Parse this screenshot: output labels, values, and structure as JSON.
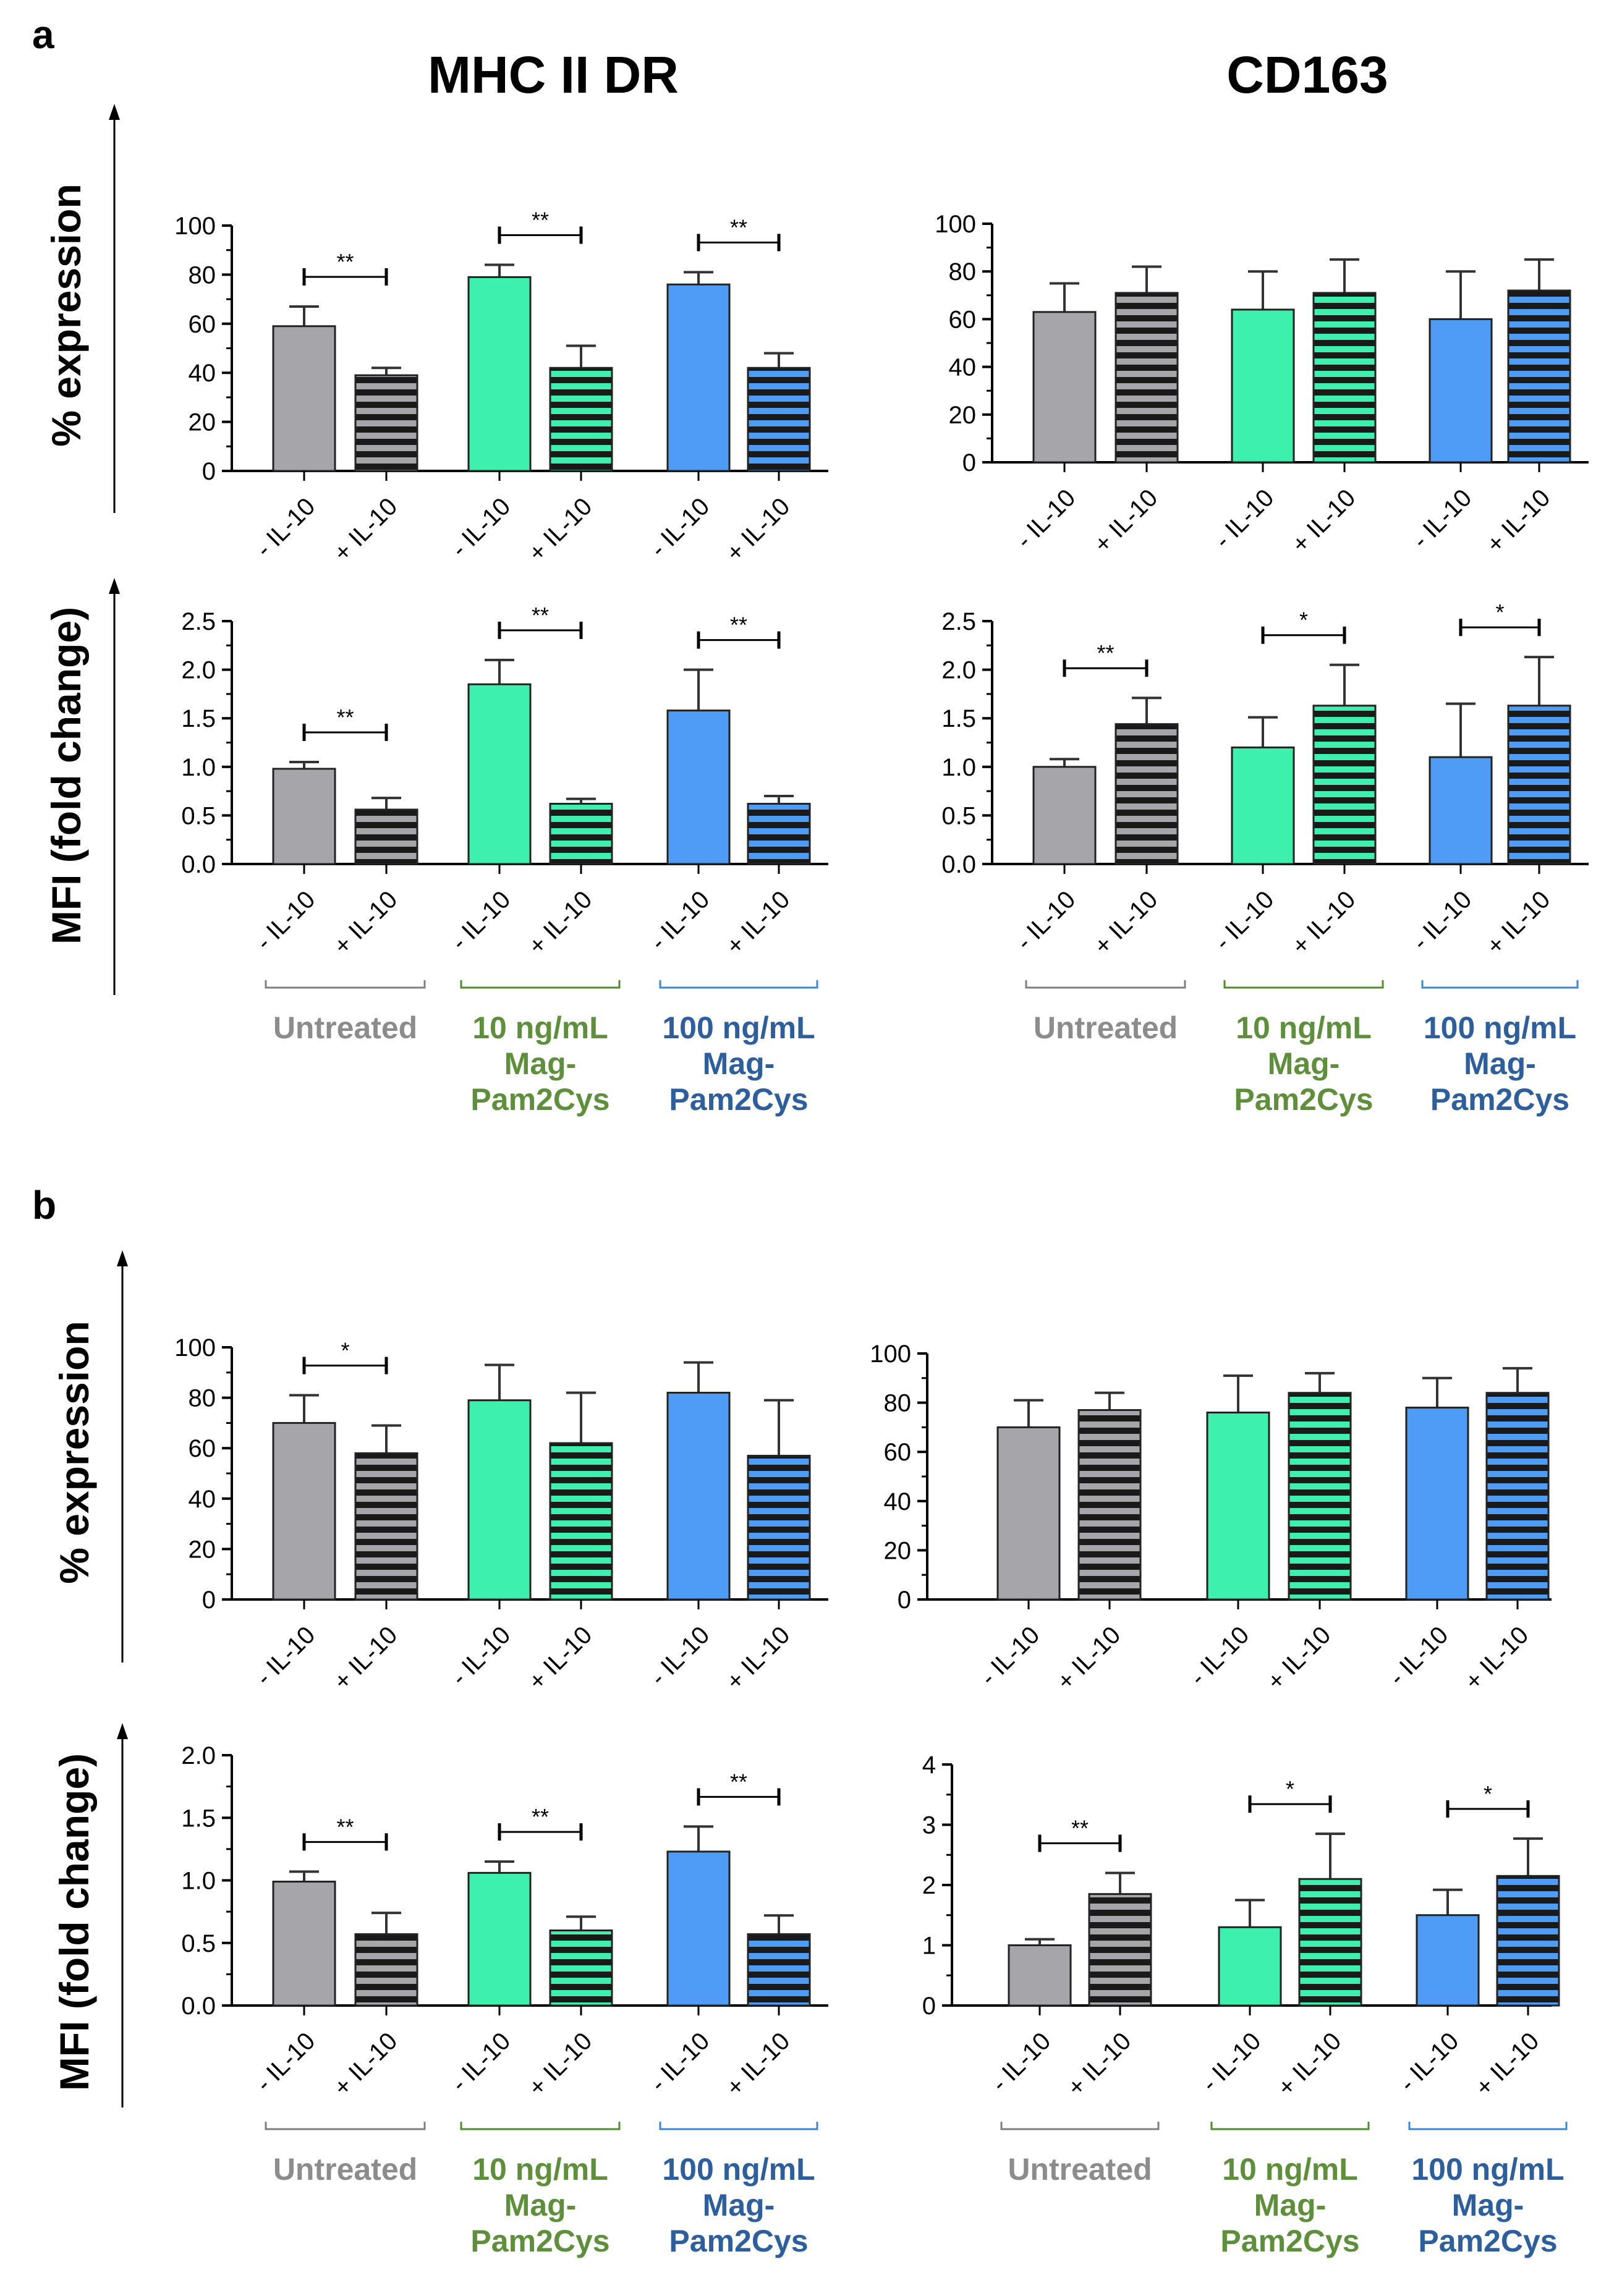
{
  "colors": {
    "untreated": "#a6a6aa",
    "mag10": "#3ef0ae",
    "mag100": "#4f9cf7",
    "label_untreated": "#8c8c8c",
    "label_mag10": "#5e8f3a",
    "label_mag100": "#2d5f9e",
    "bracket_untreated": "#7f7f7f",
    "bracket_mag10": "#4e8d2e",
    "bracket_mag100": "#3b86d6"
  },
  "figure": {
    "panel_labels": [
      "a",
      "b"
    ],
    "column_titles": [
      "MHC II DR",
      "CD163"
    ],
    "row_ylabels": [
      "% expression",
      "MFI (fold change)"
    ],
    "condition_labels": [
      "- IL-10",
      "+ IL-10"
    ],
    "group_labels": [
      [
        "Untreated"
      ],
      [
        "10 ng/mL",
        "Mag-",
        "Pam2Cys"
      ],
      [
        "100 ng/mL",
        "Mag-",
        "Pam2Cys"
      ]
    ]
  },
  "chart_data": [
    {
      "type": "bar",
      "panel": "a",
      "marker": "MHC II DR",
      "measure": "% expression",
      "ylim": [
        0,
        100
      ],
      "yticks": [
        0,
        20,
        40,
        60,
        80,
        100
      ],
      "ytick_labels": [
        "0",
        "20",
        "40",
        "60",
        "80",
        "100"
      ],
      "values": [
        59,
        39,
        79,
        42,
        76,
        42
      ],
      "errors": [
        8,
        3,
        5,
        9,
        5,
        6
      ],
      "significance": [
        {
          "group": 0,
          "label": "**"
        },
        {
          "group": 1,
          "label": "**"
        },
        {
          "group": 2,
          "label": "**"
        }
      ]
    },
    {
      "type": "bar",
      "panel": "a",
      "marker": "CD163",
      "measure": "% expression",
      "ylim": [
        0,
        100
      ],
      "yticks": [
        0,
        20,
        40,
        60,
        80,
        100
      ],
      "ytick_labels": [
        "0",
        "20",
        "40",
        "60",
        "80",
        "100"
      ],
      "values": [
        63,
        71,
        64,
        71,
        60,
        72
      ],
      "errors": [
        12,
        11,
        16,
        14,
        20,
        13
      ],
      "significance": []
    },
    {
      "type": "bar",
      "panel": "a",
      "marker": "MHC II DR",
      "measure": "MFI (fold change)",
      "ylim": [
        0,
        2.5
      ],
      "yticks": [
        0,
        0.5,
        1.0,
        1.5,
        2.0,
        2.5
      ],
      "ytick_labels": [
        "0.0",
        "0.5",
        "1.0",
        "1.5",
        "2.0",
        "2.5"
      ],
      "values": [
        0.98,
        0.56,
        1.85,
        0.62,
        1.58,
        0.62
      ],
      "errors": [
        0.07,
        0.12,
        0.25,
        0.05,
        0.42,
        0.08
      ],
      "significance": [
        {
          "group": 0,
          "label": "**"
        },
        {
          "group": 1,
          "label": "**"
        },
        {
          "group": 2,
          "label": "**"
        }
      ]
    },
    {
      "type": "bar",
      "panel": "a",
      "marker": "CD163",
      "measure": "MFI (fold change)",
      "ylim": [
        0,
        2.5
      ],
      "yticks": [
        0,
        0.5,
        1.0,
        1.5,
        2.0,
        2.5
      ],
      "ytick_labels": [
        "0.0",
        "0.5",
        "1.0",
        "1.5",
        "2.0",
        "2.5"
      ],
      "values": [
        1.0,
        1.44,
        1.2,
        1.63,
        1.1,
        1.63
      ],
      "errors": [
        0.08,
        0.27,
        0.31,
        0.42,
        0.55,
        0.5
      ],
      "significance": [
        {
          "group": 0,
          "label": "**"
        },
        {
          "group": 1,
          "label": "*"
        },
        {
          "group": 2,
          "label": "*"
        }
      ]
    },
    {
      "type": "bar",
      "panel": "b",
      "marker": "MHC II DR",
      "measure": "% expression",
      "ylim": [
        0,
        100
      ],
      "yticks": [
        0,
        20,
        40,
        60,
        80,
        100
      ],
      "ytick_labels": [
        "0",
        "20",
        "40",
        "60",
        "80",
        "100"
      ],
      "values": [
        70,
        58,
        79,
        62,
        82,
        57
      ],
      "errors": [
        11,
        11,
        14,
        20,
        12,
        22
      ],
      "significance": [
        {
          "group": 0,
          "label": "*"
        }
      ]
    },
    {
      "type": "bar",
      "panel": "b",
      "marker": "CD163",
      "measure": "% expression",
      "ylim": [
        0,
        100
      ],
      "yticks": [
        0,
        20,
        40,
        60,
        80,
        100
      ],
      "ytick_labels": [
        "0",
        "20",
        "40",
        "60",
        "80",
        "100"
      ],
      "values": [
        70,
        77,
        76,
        84,
        78,
        84
      ],
      "errors": [
        11,
        7,
        15,
        8,
        12,
        10
      ],
      "significance": []
    },
    {
      "type": "bar",
      "panel": "b",
      "marker": "MHC II DR",
      "measure": "MFI (fold change)",
      "ylim": [
        0,
        2.0
      ],
      "yticks": [
        0,
        0.5,
        1.0,
        1.5,
        2.0
      ],
      "ytick_labels": [
        "0.0",
        "0.5",
        "1.0",
        "1.5",
        "2.0"
      ],
      "values": [
        0.99,
        0.57,
        1.06,
        0.6,
        1.23,
        0.57
      ],
      "errors": [
        0.08,
        0.17,
        0.09,
        0.11,
        0.2,
        0.15
      ],
      "significance": [
        {
          "group": 0,
          "label": "**"
        },
        {
          "group": 1,
          "label": "**"
        },
        {
          "group": 2,
          "label": "**"
        }
      ]
    },
    {
      "type": "bar",
      "panel": "b",
      "marker": "CD163",
      "measure": "MFI (fold change)",
      "ylim": [
        0,
        4
      ],
      "yticks": [
        0,
        1,
        2,
        3,
        4
      ],
      "ytick_labels": [
        "0",
        "1",
        "2",
        "3",
        "4"
      ],
      "values": [
        1.0,
        1.85,
        1.3,
        2.1,
        1.5,
        2.15
      ],
      "errors": [
        0.1,
        0.35,
        0.45,
        0.75,
        0.42,
        0.62
      ],
      "significance": [
        {
          "group": 0,
          "label": "**"
        },
        {
          "group": 1,
          "label": "*"
        },
        {
          "group": 2,
          "label": "*"
        }
      ]
    }
  ]
}
